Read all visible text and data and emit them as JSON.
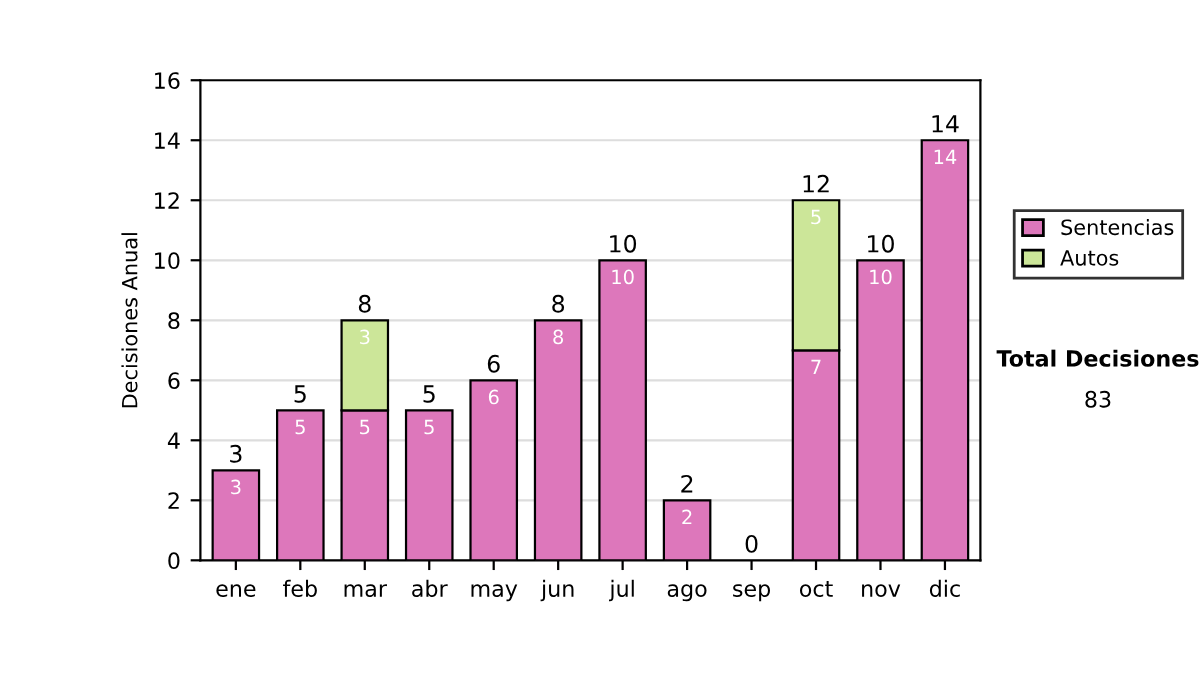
{
  "chart_data": {
    "type": "bar",
    "stacked": true,
    "ylabel": "Decisiones Anual",
    "categories": [
      "ene",
      "feb",
      "mar",
      "abr",
      "may",
      "jun",
      "jul",
      "ago",
      "sep",
      "oct",
      "nov",
      "dic"
    ],
    "series": [
      {
        "name": "Sentencias",
        "color": "#dd77bb",
        "values": [
          3,
          5,
          5,
          5,
          6,
          8,
          10,
          2,
          0,
          7,
          10,
          14
        ],
        "value_labels": [
          "3",
          "5",
          "5",
          "5",
          "6",
          "8",
          "10",
          "2",
          null,
          "7",
          "10",
          "14"
        ]
      },
      {
        "name": "Autos",
        "color": "#cce699",
        "values": [
          0,
          0,
          3,
          0,
          0,
          0,
          0,
          0,
          0,
          5,
          0,
          0
        ],
        "value_labels": [
          null,
          null,
          "3",
          null,
          null,
          null,
          null,
          null,
          null,
          "5",
          null,
          null
        ]
      }
    ],
    "totals": [
      "3",
      "5",
      "8",
      "5",
      "6",
      "8",
      "10",
      "2",
      "0",
      "12",
      "10",
      "14"
    ],
    "ylim": [
      0,
      16
    ],
    "yticks": [
      0,
      2,
      4,
      6,
      8,
      10,
      12,
      14,
      16
    ],
    "grid": "y",
    "legend": "right",
    "annotations": [
      "Total Decisiones",
      "83"
    ]
  }
}
